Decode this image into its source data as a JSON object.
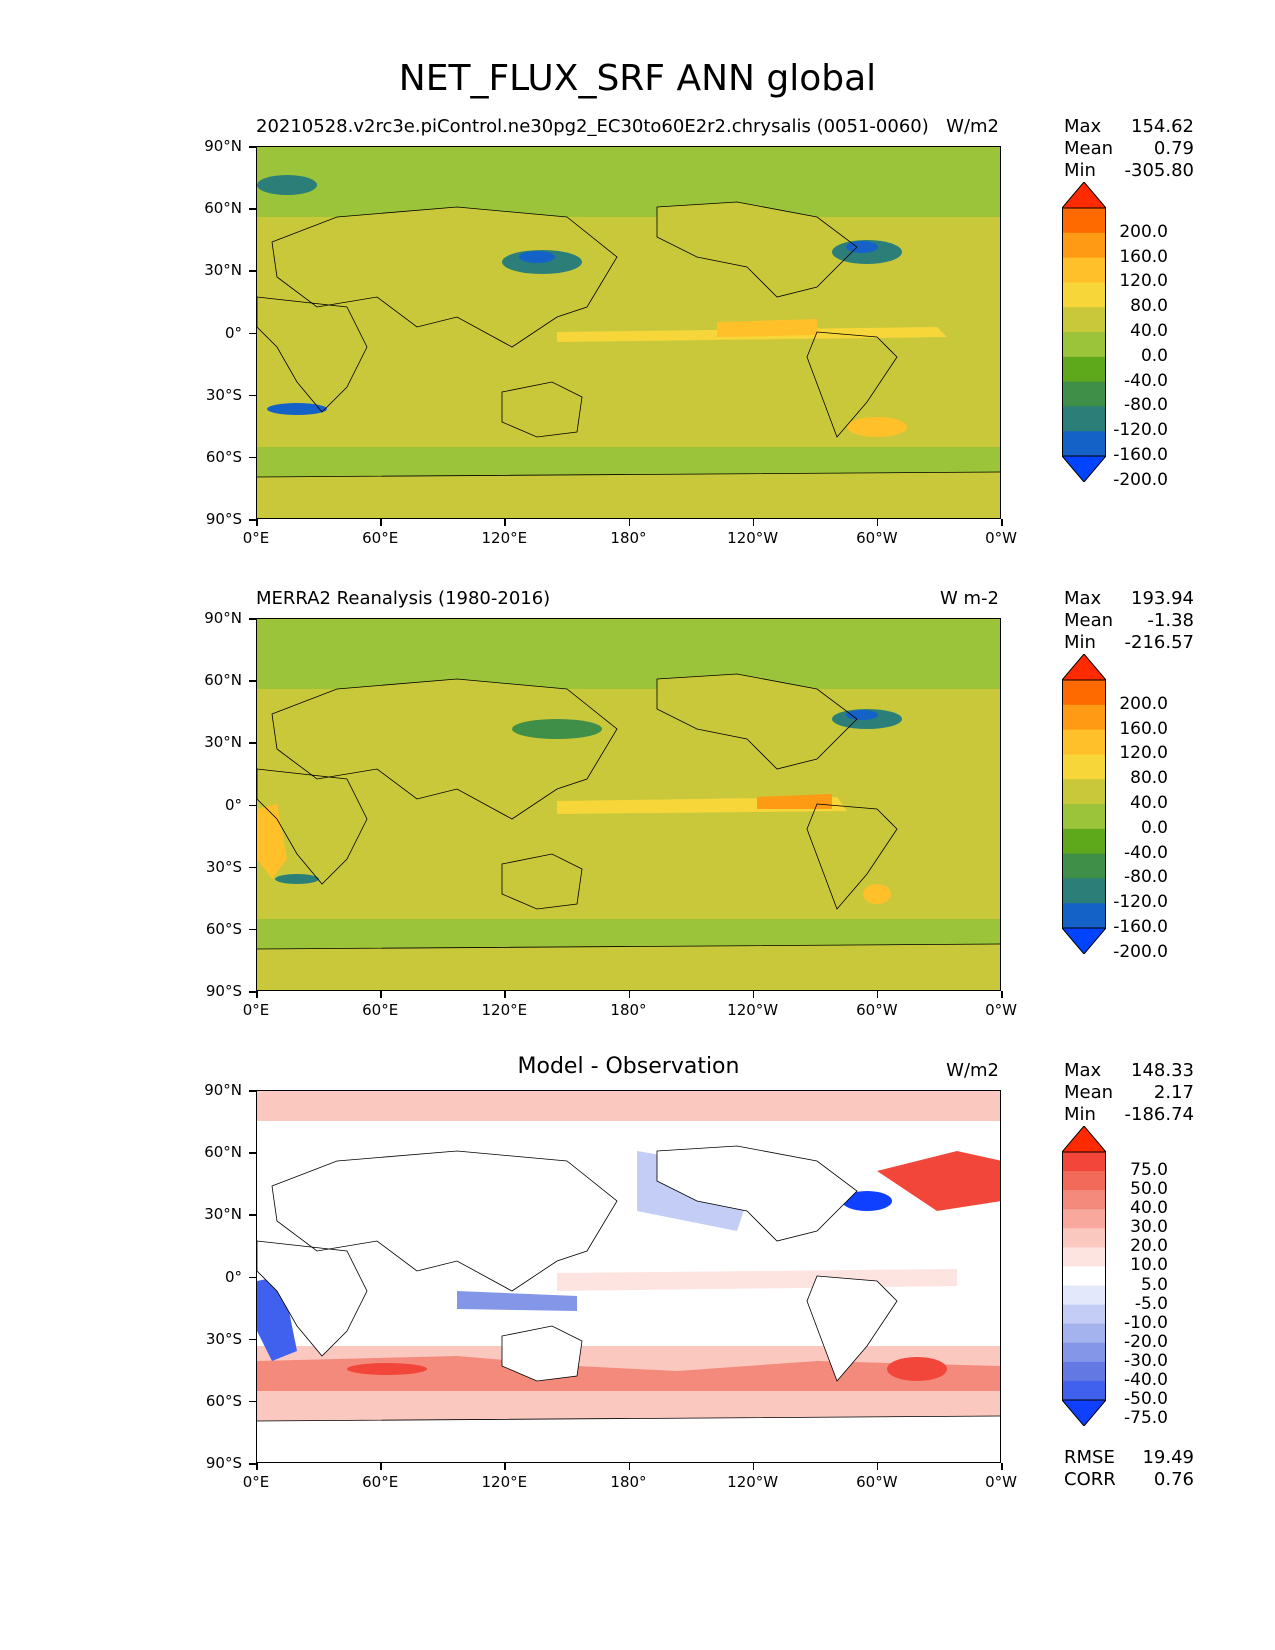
{
  "figure_title": "NET_FLUX_SRF ANN global",
  "lat_labels": [
    "90°N",
    "60°N",
    "30°N",
    "0°",
    "30°S",
    "60°S",
    "90°S"
  ],
  "lon_labels": [
    "0°E",
    "60°E",
    "120°E",
    "180°",
    "120°W",
    "60°W",
    "0°W"
  ],
  "panels": [
    {
      "left_title": "20210528.v2rc3e.piControl.ne30pg2_EC30to60E2r2.chrysalis (0051-0060)",
      "center_title": "",
      "units": "W/m2",
      "stats": {
        "max_label": "Max",
        "max": "154.62",
        "mean_label": "Mean",
        "mean": "0.79",
        "min_label": "Min",
        "min": "-305.80"
      },
      "colorbar_ticks": [
        "200.0",
        "160.0",
        "120.0",
        "80.0",
        "40.0",
        "0.0",
        "-40.0",
        "-80.0",
        "-120.0",
        "-160.0",
        "-200.0"
      ],
      "colorbar_colors": [
        "#ff2a00",
        "#ff6a00",
        "#ff9a14",
        "#ffc02a",
        "#f7d63a",
        "#c9c83a",
        "#9cc43a",
        "#5ea81c",
        "#3f8f48",
        "#2b7f78",
        "#1462c8",
        "#0044ff"
      ]
    },
    {
      "left_title": "MERRA2 Reanalysis (1980-2016)",
      "center_title": "",
      "units": "W m-2",
      "stats": {
        "max_label": "Max",
        "max": "193.94",
        "mean_label": "Mean",
        "mean": "-1.38",
        "min_label": "Min",
        "min": "-216.57"
      },
      "colorbar_ticks": [
        "200.0",
        "160.0",
        "120.0",
        "80.0",
        "40.0",
        "0.0",
        "-40.0",
        "-80.0",
        "-120.0",
        "-160.0",
        "-200.0"
      ],
      "colorbar_colors": [
        "#ff2a00",
        "#ff6a00",
        "#ff9a14",
        "#ffc02a",
        "#f7d63a",
        "#c9c83a",
        "#9cc43a",
        "#5ea81c",
        "#3f8f48",
        "#2b7f78",
        "#1462c8",
        "#0044ff"
      ]
    },
    {
      "left_title": "",
      "center_title": "Model - Observation",
      "units": "W/m2",
      "stats": {
        "max_label": "Max",
        "max": "148.33",
        "mean_label": "Mean",
        "mean": "2.17",
        "min_label": "Min",
        "min": "-186.74"
      },
      "colorbar_ticks": [
        "75.0",
        "50.0",
        "40.0",
        "30.0",
        "20.0",
        "10.0",
        "5.0",
        "-5.0",
        "-10.0",
        "-20.0",
        "-30.0",
        "-40.0",
        "-50.0",
        "-75.0"
      ],
      "colorbar_colors": [
        "#ff2a00",
        "#f2463a",
        "#f26a5a",
        "#f48a7c",
        "#f8a89c",
        "#fbc8c0",
        "#fde4e0",
        "#ffffff",
        "#e4e8fb",
        "#c4cdf5",
        "#a4b2ee",
        "#8496e8",
        "#6478e4",
        "#4060ee",
        "#1040ff"
      ],
      "metrics": {
        "rmse_label": "RMSE",
        "rmse": "19.49",
        "corr_label": "CORR",
        "corr": "0.76"
      }
    }
  ]
}
